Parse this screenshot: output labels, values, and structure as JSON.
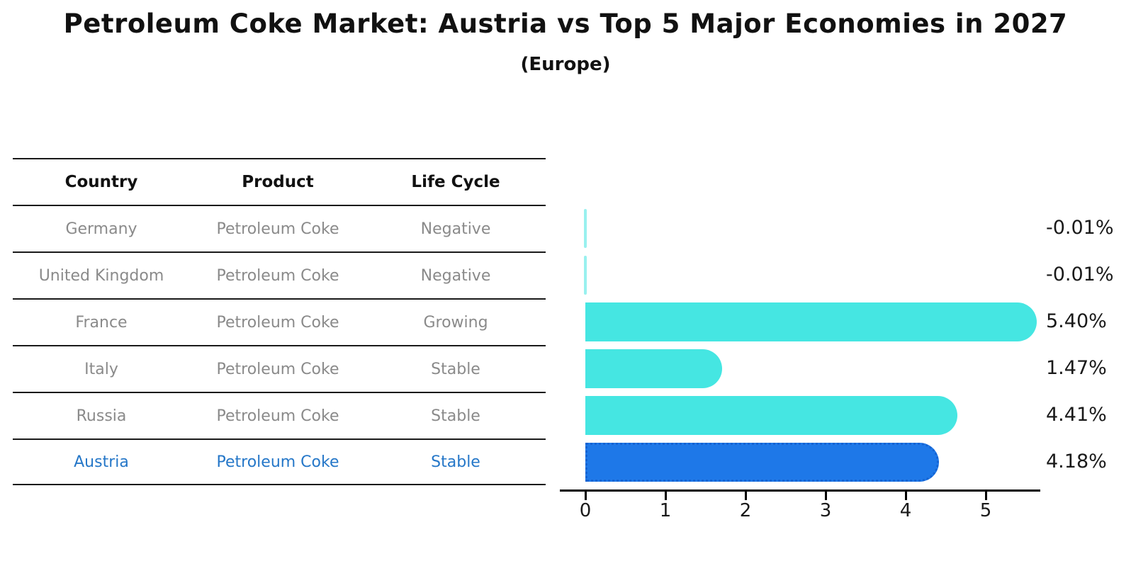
{
  "title": "Petroleum Coke Market: Austria vs Top 5 Major Economies in 2027",
  "subtitle": "(Europe)",
  "table": {
    "headers": [
      "Country",
      "Product",
      "Life Cycle"
    ],
    "rows": [
      {
        "country": "Germany",
        "product": "Petroleum Coke",
        "life_cycle": "Negative",
        "highlight": false
      },
      {
        "country": "United Kingdom",
        "product": "Petroleum Coke",
        "life_cycle": "Negative",
        "highlight": false
      },
      {
        "country": "France",
        "product": "Petroleum Coke",
        "life_cycle": "Growing",
        "highlight": false
      },
      {
        "country": "Italy",
        "product": "Petroleum Coke",
        "life_cycle": "Stable",
        "highlight": false
      },
      {
        "country": "Russia",
        "product": "Petroleum Coke",
        "life_cycle": "Stable",
        "highlight": false
      },
      {
        "country": "Austria",
        "product": "Petroleum Coke",
        "life_cycle": "Stable",
        "highlight": true
      }
    ]
  },
  "chart_data": {
    "type": "bar",
    "orientation": "horizontal",
    "title": "",
    "xlabel": "",
    "ylabel": "",
    "categories": [
      "Germany",
      "United Kingdom",
      "France",
      "Italy",
      "Russia",
      "Austria"
    ],
    "values": [
      -0.01,
      -0.01,
      5.4,
      1.47,
      4.41,
      4.18
    ],
    "value_labels": [
      "-0.01%",
      "-0.01%",
      "5.40%",
      "1.47%",
      "4.41%",
      "4.18%"
    ],
    "x_ticks": [
      "0",
      "1",
      "2",
      "3",
      "4",
      "5"
    ],
    "xlim": [
      -0.3,
      5.7
    ],
    "grid": false,
    "legend": false,
    "highlight_index": 5,
    "bar_color": "#45e6e2",
    "highlight_bar_color": "#1e78e8",
    "highlight_bar_border": "#1563d2",
    "highlight_text_color": "#2577c8"
  }
}
